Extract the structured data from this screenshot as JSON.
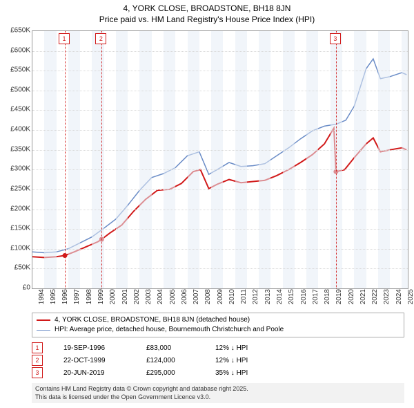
{
  "title": "4, YORK CLOSE, BROADSTONE, BH18 8JN",
  "subtitle": "Price paid vs. HM Land Registry's House Price Index (HPI)",
  "chart": {
    "type": "line",
    "background_color": "#ffffff",
    "grid_color": "#d9d9d9",
    "border_color": "#999999",
    "x_years": [
      1994,
      1995,
      1996,
      1997,
      1998,
      1999,
      2000,
      2001,
      2002,
      2003,
      2004,
      2005,
      2006,
      2007,
      2008,
      2009,
      2010,
      2011,
      2012,
      2013,
      2014,
      2015,
      2016,
      2017,
      2018,
      2019,
      2020,
      2021,
      2022,
      2023,
      2024,
      2025
    ],
    "x_range": [
      1994,
      2025.5
    ],
    "y_ticks": [
      0,
      50000,
      100000,
      150000,
      200000,
      250000,
      300000,
      350000,
      400000,
      450000,
      500000,
      550000,
      600000,
      650000
    ],
    "y_tick_labels": [
      "£0",
      "£50K",
      "£100K",
      "£150K",
      "£200K",
      "£250K",
      "£300K",
      "£350K",
      "£400K",
      "£450K",
      "£500K",
      "£550K",
      "£600K",
      "£650K"
    ],
    "ylim": [
      0,
      650000
    ],
    "shaded_years": [
      1995,
      1997,
      1999,
      2001,
      2003,
      2005,
      2007,
      2009,
      2011,
      2013,
      2015,
      2017,
      2019,
      2021,
      2023,
      2025
    ],
    "shaded_color": "#e6ecf5",
    "series_red": {
      "label": "4, YORK CLOSE, BROADSTONE, BH18 8JN (detached house)",
      "color": "#d11919",
      "line_width": 2,
      "points": [
        [
          1994.0,
          80000
        ],
        [
          1995.0,
          78000
        ],
        [
          1996.0,
          80000
        ],
        [
          1996.72,
          83000
        ],
        [
          1997.5,
          92000
        ],
        [
          1998.5,
          105000
        ],
        [
          1999.5,
          118000
        ],
        [
          1999.81,
          124000
        ],
        [
          2000.5,
          140000
        ],
        [
          2001.5,
          160000
        ],
        [
          2002.5,
          195000
        ],
        [
          2003.5,
          225000
        ],
        [
          2004.5,
          248000
        ],
        [
          2005.5,
          250000
        ],
        [
          2006.5,
          265000
        ],
        [
          2007.5,
          295000
        ],
        [
          2008.1,
          300000
        ],
        [
          2008.8,
          252000
        ],
        [
          2009.5,
          263000
        ],
        [
          2010.5,
          275000
        ],
        [
          2011.5,
          267000
        ],
        [
          2012.5,
          270000
        ],
        [
          2013.5,
          273000
        ],
        [
          2014.5,
          285000
        ],
        [
          2015.5,
          300000
        ],
        [
          2016.5,
          318000
        ],
        [
          2017.5,
          338000
        ],
        [
          2018.5,
          365000
        ],
        [
          2019.3,
          405000
        ],
        [
          2019.47,
          295000
        ],
        [
          2020.2,
          300000
        ],
        [
          2021.0,
          330000
        ],
        [
          2022.0,
          365000
        ],
        [
          2022.6,
          380000
        ],
        [
          2023.2,
          345000
        ],
        [
          2024.0,
          350000
        ],
        [
          2025.0,
          355000
        ],
        [
          2025.4,
          350000
        ]
      ],
      "sale_points": [
        [
          1996.72,
          83000
        ],
        [
          1999.81,
          124000
        ],
        [
          2019.47,
          295000
        ]
      ],
      "marker_color": "#d11919"
    },
    "series_blue": {
      "label": "HPI: Average price, detached house, Bournemouth Christchurch and Poole",
      "color": "#6a8cc7",
      "line_width": 1.5,
      "points": [
        [
          1994.0,
          92000
        ],
        [
          1995.0,
          90000
        ],
        [
          1996.0,
          92000
        ],
        [
          1997.0,
          100000
        ],
        [
          1998.0,
          115000
        ],
        [
          1999.0,
          130000
        ],
        [
          2000.0,
          152000
        ],
        [
          2001.0,
          175000
        ],
        [
          2002.0,
          210000
        ],
        [
          2003.0,
          248000
        ],
        [
          2004.0,
          280000
        ],
        [
          2005.0,
          290000
        ],
        [
          2006.0,
          305000
        ],
        [
          2007.0,
          335000
        ],
        [
          2008.0,
          345000
        ],
        [
          2008.8,
          288000
        ],
        [
          2009.5,
          300000
        ],
        [
          2010.5,
          318000
        ],
        [
          2011.5,
          308000
        ],
        [
          2012.5,
          310000
        ],
        [
          2013.5,
          315000
        ],
        [
          2014.5,
          335000
        ],
        [
          2015.5,
          355000
        ],
        [
          2016.5,
          378000
        ],
        [
          2017.5,
          398000
        ],
        [
          2018.5,
          410000
        ],
        [
          2019.5,
          415000
        ],
        [
          2020.3,
          425000
        ],
        [
          2021.0,
          460000
        ],
        [
          2022.0,
          555000
        ],
        [
          2022.6,
          580000
        ],
        [
          2023.2,
          530000
        ],
        [
          2024.0,
          535000
        ],
        [
          2025.0,
          545000
        ],
        [
          2025.4,
          540000
        ]
      ]
    },
    "markers": [
      {
        "n": "1",
        "x": 1996.72
      },
      {
        "n": "2",
        "x": 1999.81
      },
      {
        "n": "3",
        "x": 2019.47
      }
    ],
    "marker_box_color": "#d11919",
    "title_fontsize": 12,
    "label_fontsize": 10
  },
  "legend": {
    "items": [
      {
        "color": "#d11919",
        "width": 2,
        "label": "4, YORK CLOSE, BROADSTONE, BH18 8JN (detached house)"
      },
      {
        "color": "#6a8cc7",
        "width": 1.5,
        "label": "HPI: Average price, detached house, Bournemouth Christchurch and Poole"
      }
    ]
  },
  "events": [
    {
      "n": "1",
      "date": "19-SEP-1996",
      "price": "£83,000",
      "diff": "12% ↓ HPI"
    },
    {
      "n": "2",
      "date": "22-OCT-1999",
      "price": "£124,000",
      "diff": "12% ↓ HPI"
    },
    {
      "n": "3",
      "date": "20-JUN-2019",
      "price": "£295,000",
      "diff": "35% ↓ HPI"
    }
  ],
  "copyright_line1": "Contains HM Land Registry data © Crown copyright and database right 2025.",
  "copyright_line2": "This data is licensed under the Open Government Licence v3.0."
}
